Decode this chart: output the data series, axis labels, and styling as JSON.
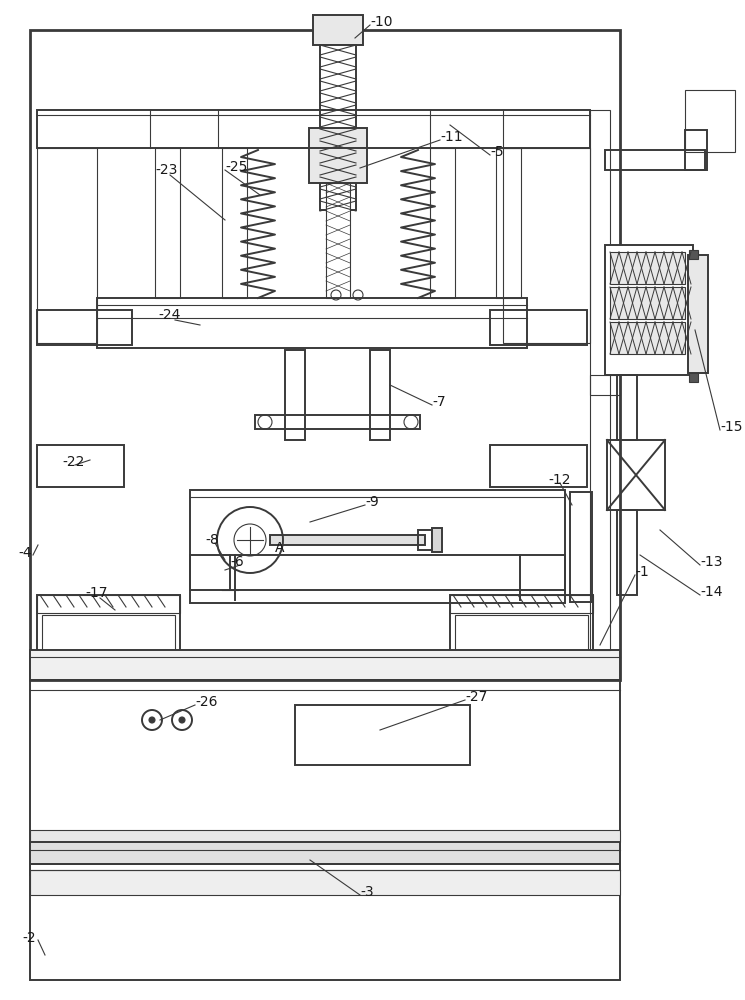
{
  "bg_color": "#ffffff",
  "lc": "#3a3a3a",
  "lw_main": 1.4,
  "lw_thin": 0.8,
  "lw_thick": 2.0
}
